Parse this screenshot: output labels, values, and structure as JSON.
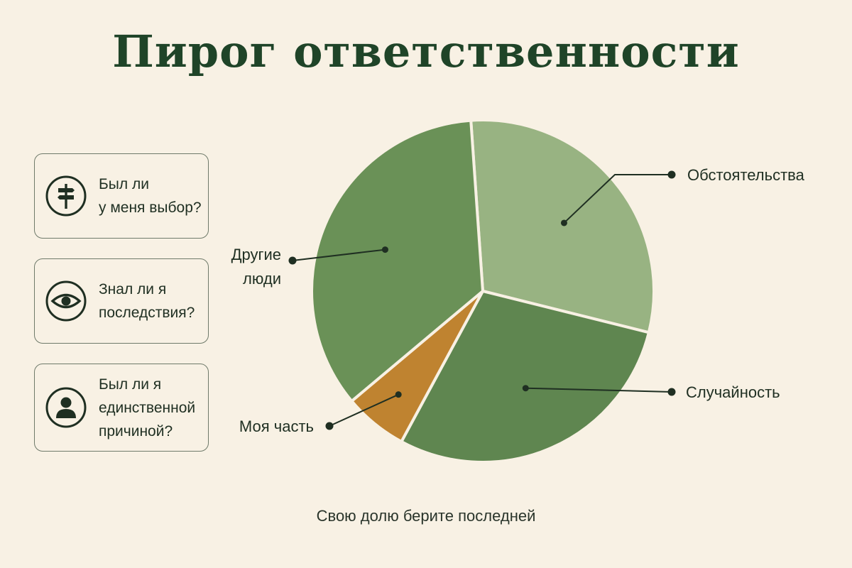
{
  "title": "Пирог ответственности",
  "cards": [
    {
      "icon": "signpost-icon",
      "text": "Был ли\nу меня выбор?"
    },
    {
      "icon": "eye-icon",
      "text": "Знал ли я\nпоследствия?"
    },
    {
      "icon": "person-icon",
      "text": "Был ли я\nединственной\nпричиной?"
    }
  ],
  "footer": "Свою долю берите последней",
  "colors": {
    "background": "#f8f1e4",
    "title": "#1f4428",
    "my_part": "#bf8330",
    "others": "#6a9157",
    "circumstances": "#98b382",
    "chance": "#5f8650"
  },
  "chart_data": {
    "type": "pie",
    "slices": [
      {
        "label": "Обстоятельства",
        "value": 30
      },
      {
        "label": "Случайность",
        "value": 29
      },
      {
        "label": "Моя часть",
        "value": 6
      },
      {
        "label": "Другие люди",
        "value": 35
      }
    ]
  }
}
